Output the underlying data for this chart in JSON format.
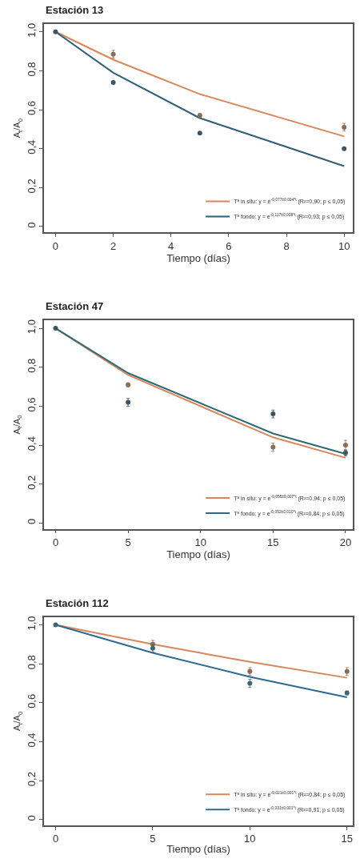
{
  "chart_data": [
    {
      "type": "line",
      "title": "Estación 13",
      "xlabel": "Tiempo (días)",
      "ylabel": "A$_{t}$/A$_{0}$",
      "x": [
        0,
        2,
        5,
        10
      ],
      "xlim": [
        -0.4,
        10.3
      ],
      "xticks": [
        0,
        2,
        4,
        6,
        8,
        10
      ],
      "ylim": [
        -0.03,
        1.04
      ],
      "yticks": [
        0,
        {
          "value": 0.2,
          "label": "0,2"
        },
        {
          "value": 0.4,
          "label": "0,4"
        },
        {
          "value": 0.6,
          "label": "0,6"
        },
        {
          "value": 0.8,
          "label": "0,8"
        },
        {
          "value": 1.0,
          "label": "1,0"
        }
      ],
      "legend": "bottom right",
      "marker": "circle",
      "series": [
        {
          "marker": "none",
          "name": "Tª in situ: y = e$^{-0,077±0,004*t}$ (R²=0,90; p ≤ 0,05)",
          "color": "#d9875a",
          "values": [
            1.0,
            0.857,
            0.68,
            0.463
          ]
        },
        {
          "marker": "none",
          "name": "Tª fondo: y = e$^{-0,117±0,008*t}$ (R²=0,93; p ≤ 0,05)",
          "color": "#2f5f7a",
          "values": [
            1.0,
            0.79,
            0.557,
            0.31
          ]
        },
        {
          "type": "scatter",
          "color": "#8a6d55",
          "values": [
            null,
            0.885,
            0.57,
            0.51
          ],
          "errors": [
            null,
            0.02,
            0.01,
            0.02
          ]
        },
        {
          "type": "scatter",
          "color": "#3d5566",
          "values": [
            1.0,
            0.74,
            0.48,
            0.4
          ]
        }
      ]
    },
    {
      "type": "line",
      "title": "Estación 47",
      "xlabel": "Tiempo (días)",
      "ylabel": "A$_{t}$/A$_{0}$",
      "x": [
        0,
        5,
        15,
        20
      ],
      "xlim": [
        -0.8,
        20.5
      ],
      "xticks": [
        0,
        5,
        10,
        15,
        20
      ],
      "ylim": [
        -0.03,
        1.04
      ],
      "yticks": [
        0,
        {
          "value": 0.2,
          "label": "0,2"
        },
        {
          "value": 0.4,
          "label": "0,4"
        },
        {
          "value": 0.6,
          "label": "0,6"
        },
        {
          "value": 0.8,
          "label": "0,8"
        },
        {
          "value": 1.0,
          "label": "1,0"
        }
      ],
      "legend": "bottom right",
      "marker": "circle",
      "series": [
        {
          "marker": "none",
          "name": "Tª in situ: y = e$^{-0,055±0,007*t}$ (R²=0,94; p ≤ 0,05)",
          "color": "#d9875a",
          "values": [
            1.0,
            0.76,
            0.44,
            0.335
          ]
        },
        {
          "marker": "none",
          "name": "Tª fondo: y = e$^{-0,052±0,010*t}$ (R²=0,84; p ≤ 0,05)",
          "color": "#2f6a7a",
          "values": [
            1.0,
            0.77,
            0.46,
            0.355
          ]
        },
        {
          "type": "scatter",
          "color": "#8a6d55",
          "values": [
            null,
            0.71,
            0.39,
            0.4
          ],
          "errors": [
            null,
            0.01,
            0.02,
            0.025
          ]
        },
        {
          "type": "scatter",
          "color": "#3d5566",
          "values": [
            1.0,
            0.62,
            0.56,
            0.36
          ],
          "errors": [
            null,
            0.02,
            0.02,
            0.015
          ]
        }
      ]
    },
    {
      "type": "line",
      "title": "Estación 112",
      "xlabel": "Tiempo (días)",
      "ylabel": "A$_{t}$/A$_{0}$",
      "x": [
        0,
        5,
        10,
        15
      ],
      "xlim": [
        -0.6,
        15.3
      ],
      "xticks": [
        0,
        5,
        10,
        15
      ],
      "ylim": [
        -0.03,
        1.04
      ],
      "yticks": [
        0,
        {
          "value": 0.2,
          "label": "0,2"
        },
        {
          "value": 0.4,
          "label": "0,4"
        },
        {
          "value": 0.6,
          "label": "0,6"
        },
        {
          "value": 0.8,
          "label": "0,8"
        },
        {
          "value": 1.0,
          "label": "1,0"
        }
      ],
      "legend": "bottom right",
      "marker": "circle",
      "series": [
        {
          "marker": "none",
          "name": "Tª in situ: y = e$^{-0,021±0,001*t}$ (R²=0,84; p ≤ 0,05)",
          "color": "#d9875a",
          "values": [
            1.0,
            0.9,
            0.81,
            0.728
          ]
        },
        {
          "marker": "none",
          "name": "Tª fondo: y = e$^{-0,031±0,001*t}$ (R²=0,91; p ≤ 0,05)",
          "color": "#2e6b94",
          "values": [
            1.0,
            0.856,
            0.733,
            0.628
          ]
        },
        {
          "type": "scatter",
          "color": "#8a6d55",
          "values": [
            null,
            0.9,
            0.76,
            0.76
          ],
          "errors": [
            null,
            0.02,
            0.02,
            0.02
          ]
        },
        {
          "type": "scatter",
          "color": "#3d6670",
          "values": [
            1.0,
            0.88,
            0.7,
            0.65
          ],
          "errors": [
            null,
            0.02,
            0.02,
            0.01
          ]
        }
      ]
    }
  ]
}
